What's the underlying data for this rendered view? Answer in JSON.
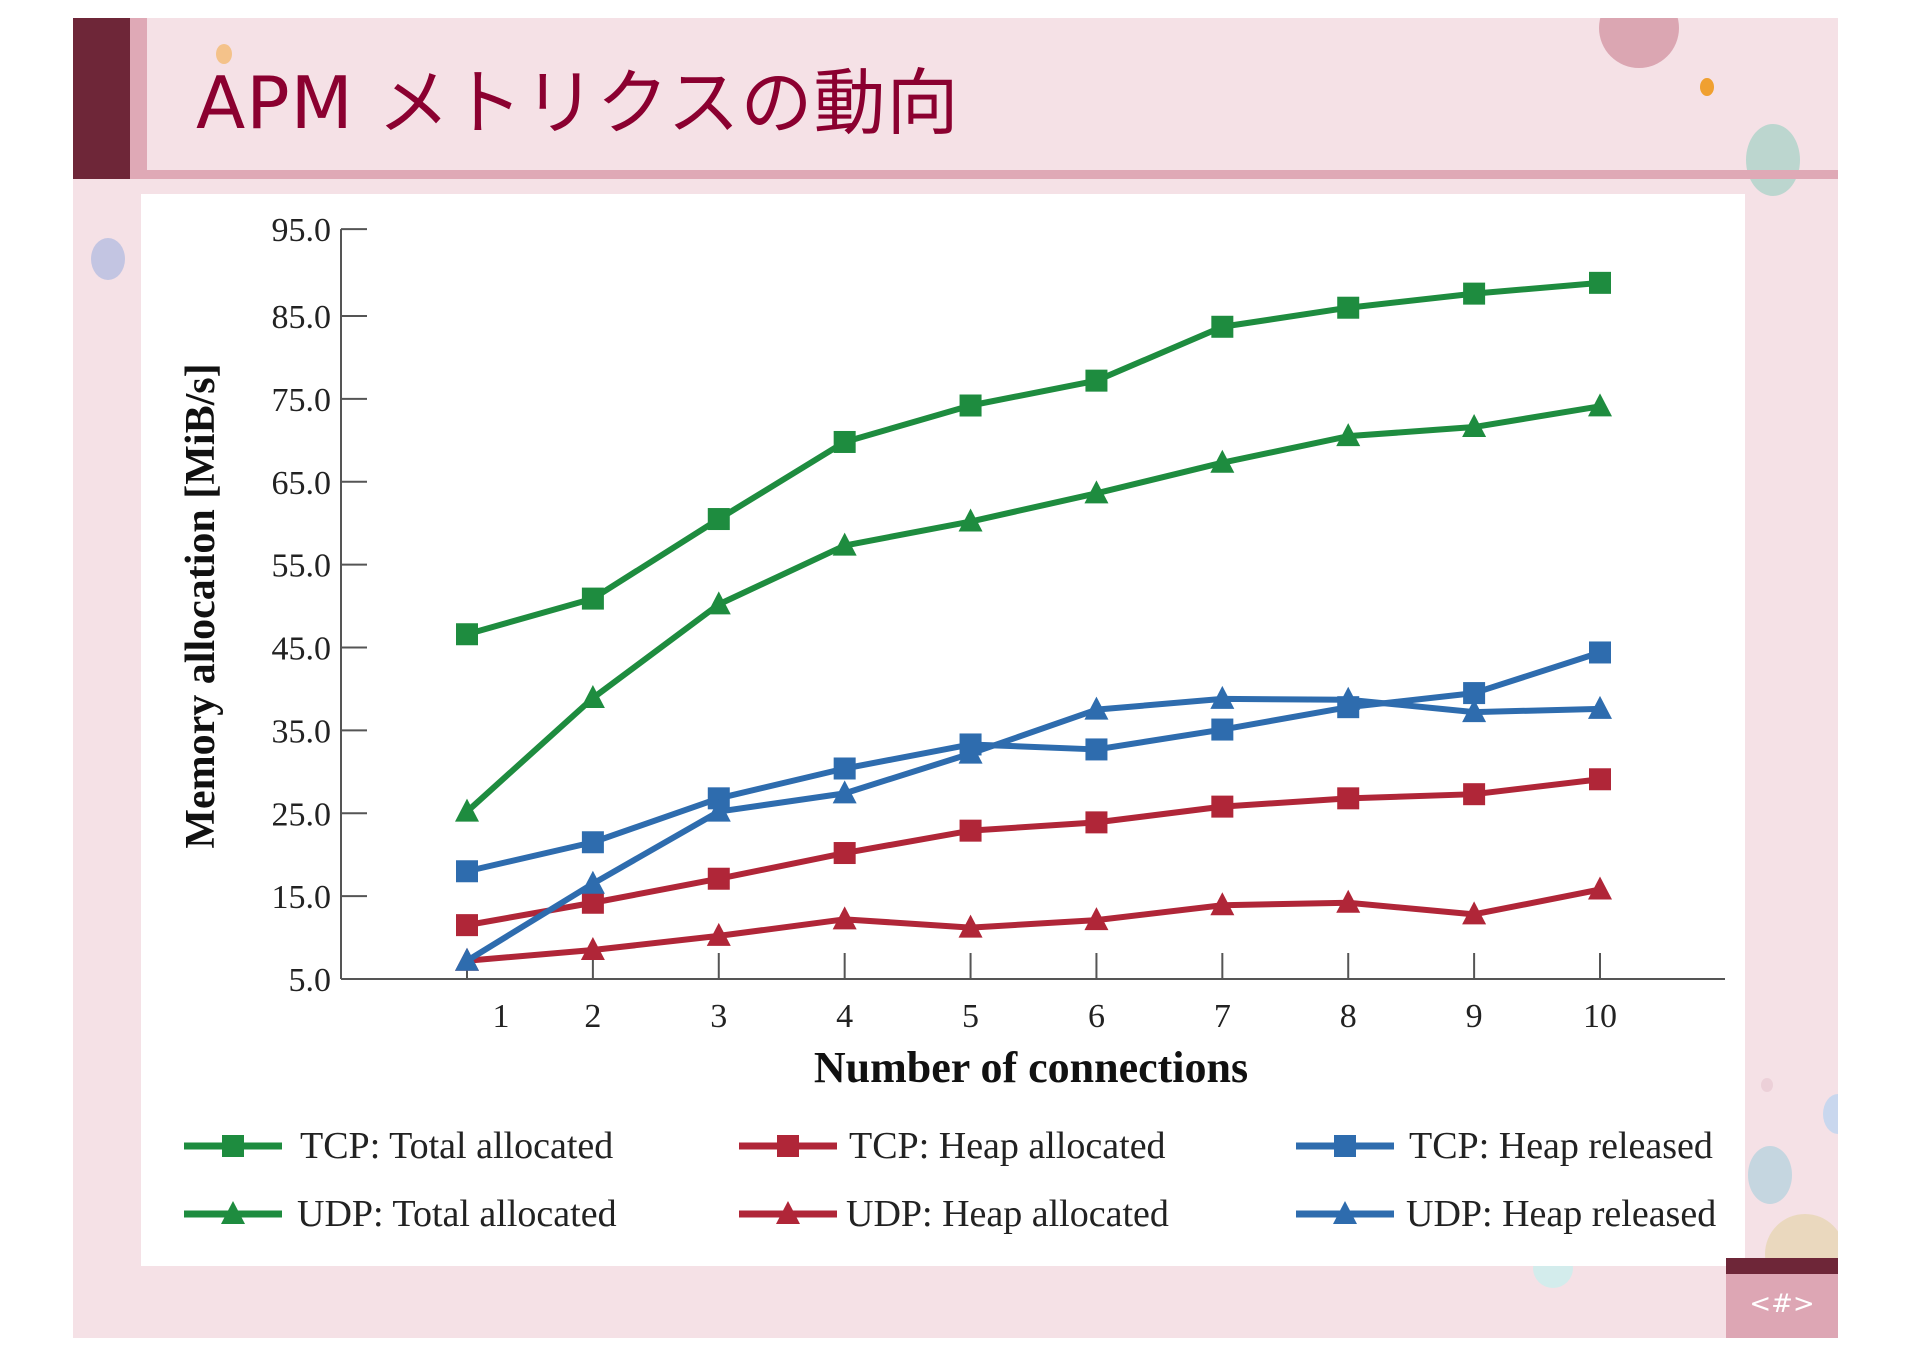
{
  "slide": {
    "title": "APM メトリクスの動向",
    "page_number": "<#>"
  },
  "colors": {
    "tcp_udp_total": "#1e8c3f",
    "heap_allocated": "#b02638",
    "heap_released": "#2e6cae",
    "title": "#8b0030"
  },
  "chart_data": {
    "type": "line",
    "xlabel": "Number of connections",
    "ylabel": "Memory allocation [MiB/s]",
    "x": [
      1,
      2,
      3,
      4,
      5,
      6,
      7,
      8,
      9,
      10
    ],
    "x_tick_labels": [
      "1",
      "2",
      "3",
      "4",
      "5",
      "6",
      "7",
      "8",
      "9",
      "10"
    ],
    "y_tick_labels": [
      "5.0",
      "15.0",
      "25.0",
      "35.0",
      "45.0",
      "55.0",
      "65.0",
      "75.0",
      "85.0",
      "95.0"
    ],
    "y_ticks": [
      5,
      15,
      25,
      35,
      45,
      55,
      65,
      75,
      85,
      95
    ],
    "ylim": [
      5,
      95
    ],
    "grid": false,
    "legend_placement": "bottom",
    "series": [
      {
        "name": "TCP: Total allocated",
        "color": "#1e8c3f",
        "marker": "square",
        "values": [
          46.6,
          50.9,
          60.5,
          69.8,
          74.2,
          77.2,
          83.7,
          86.0,
          87.7,
          89.0
        ]
      },
      {
        "name": "UDP: Total allocated",
        "color": "#1e8c3f",
        "marker": "triangle",
        "values": [
          25.2,
          38.9,
          50.2,
          57.3,
          60.2,
          63.6,
          67.3,
          70.5,
          71.6,
          74.1
        ]
      },
      {
        "name": "TCP: Heap allocated",
        "color": "#b02638",
        "marker": "square",
        "values": [
          11.5,
          14.2,
          17.1,
          20.2,
          22.9,
          23.9,
          25.8,
          26.8,
          27.3,
          29.1
        ]
      },
      {
        "name": "UDP: Heap allocated",
        "color": "#b02638",
        "marker": "triangle",
        "values": [
          7.2,
          8.5,
          10.2,
          12.2,
          11.2,
          12.1,
          13.9,
          14.2,
          12.8,
          15.8
        ]
      },
      {
        "name": "TCP: Heap released",
        "color": "#2e6cae",
        "marker": "square",
        "values": [
          18.0,
          21.5,
          26.8,
          30.4,
          33.3,
          32.7,
          35.1,
          37.8,
          39.5,
          44.4
        ]
      },
      {
        "name": "UDP: Heap released",
        "color": "#2e6cae",
        "marker": "triangle",
        "values": [
          7.2,
          16.5,
          25.2,
          27.4,
          32.2,
          37.5,
          38.8,
          38.7,
          37.2,
          37.6
        ]
      }
    ]
  }
}
